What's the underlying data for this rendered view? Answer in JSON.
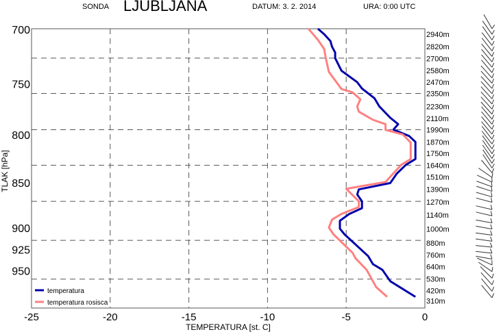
{
  "header": {
    "sonda_label": "SONDA",
    "station": "LJUBLJANA",
    "date": "DATUM:  3. 2. 2014",
    "time": "URA:  0:00 UTC"
  },
  "colors": {
    "temperature": "#0000aa",
    "dewpoint": "#ff8080",
    "grid": "#555555"
  },
  "chart_data": {
    "type": "line",
    "xlabel": "TEMPERATURA [st. C]",
    "ylabel": "TLAK [hPa]",
    "xlim": [
      -25,
      0
    ],
    "ylim": [
      700,
      1000
    ],
    "yscale": "log",
    "xticks": [
      -25,
      -20,
      -15,
      -10,
      -5,
      0
    ],
    "yticks": [
      700,
      750,
      800,
      850,
      900,
      925,
      950
    ],
    "vgrid": [
      -20,
      -15,
      -10,
      -5
    ],
    "hgrid_pressures": [
      726.5,
      759.7,
      795.4,
      832,
      870.9,
      915,
      961
    ],
    "legend": {
      "placement": "bottom-left",
      "entries": [
        "temperatura",
        "temperatura rosisca"
      ]
    },
    "series": [
      {
        "name": "temperatura",
        "points": [
          [
            700,
            -6.8
          ],
          [
            704.9,
            -6.4
          ],
          [
            711,
            -6.0
          ],
          [
            716.1,
            -5.9
          ],
          [
            721.4,
            -5.7
          ],
          [
            726.5,
            -5.7
          ],
          [
            738.2,
            -5.3
          ],
          [
            749,
            -4.3
          ],
          [
            755,
            -4.0
          ],
          [
            764.4,
            -3.2
          ],
          [
            772.2,
            -2.9
          ],
          [
            783.5,
            -2.2
          ],
          [
            789.9,
            -1.7
          ],
          [
            795.4,
            -2.0
          ],
          [
            801.8,
            -1.0
          ],
          [
            807.8,
            -0.6
          ],
          [
            825.5,
            -0.6
          ],
          [
            831.5,
            -1.2
          ],
          [
            841.2,
            -1.8
          ],
          [
            851,
            -2.2
          ],
          [
            857.9,
            -4.2
          ],
          [
            863.4,
            -4.3
          ],
          [
            870.9,
            -4.0
          ],
          [
            878.5,
            -4.0
          ],
          [
            884.9,
            -4.8
          ],
          [
            892.6,
            -5.4
          ],
          [
            901.6,
            -5.4
          ],
          [
            908.2,
            -5.1
          ],
          [
            933.5,
            -3.6
          ],
          [
            943,
            -3.3
          ],
          [
            949.8,
            -2.7
          ],
          [
            963.6,
            -2.2
          ],
          [
            982.8,
            -0.6
          ]
        ]
      },
      {
        "name": "temperatura rosisca",
        "points": [
          [
            700,
            -7.4
          ],
          [
            709.9,
            -6.8
          ],
          [
            718.2,
            -6.4
          ],
          [
            726.5,
            -6.3
          ],
          [
            739.3,
            -6.1
          ],
          [
            755.5,
            -5.3
          ],
          [
            758.7,
            -4.6
          ],
          [
            765.4,
            -4.1
          ],
          [
            772.2,
            -4.3
          ],
          [
            777.5,
            -4.2
          ],
          [
            785.5,
            -3.3
          ],
          [
            789.9,
            -2.5
          ],
          [
            795.6,
            -2.5
          ],
          [
            800.3,
            -1.4
          ],
          [
            808.5,
            -0.9
          ],
          [
            815.6,
            -0.9
          ],
          [
            825.5,
            -0.9
          ],
          [
            831.5,
            -1.5
          ],
          [
            849.8,
            -2.5
          ],
          [
            857.2,
            -5.0
          ],
          [
            870.9,
            -4.2
          ],
          [
            877.3,
            -4.2
          ],
          [
            884.9,
            -5.3
          ],
          [
            891.3,
            -5.9
          ],
          [
            900.4,
            -6.1
          ],
          [
            908.2,
            -5.8
          ],
          [
            929.5,
            -4.6
          ],
          [
            936.3,
            -4.4
          ],
          [
            949.8,
            -3.7
          ],
          [
            970.6,
            -3.1
          ],
          [
            982.8,
            -2.4
          ]
        ]
      }
    ],
    "heights": [
      {
        "label": "2940m",
        "p": 704.9
      },
      {
        "label": "2820m",
        "p": 716
      },
      {
        "label": "2700m",
        "p": 727
      },
      {
        "label": "2580m",
        "p": 738
      },
      {
        "label": "2470m",
        "p": 749
      },
      {
        "label": "2350m",
        "p": 759.7
      },
      {
        "label": "2230m",
        "p": 772.2
      },
      {
        "label": "2110m",
        "p": 784
      },
      {
        "label": "1990m",
        "p": 795.4
      },
      {
        "label": "1870m",
        "p": 808
      },
      {
        "label": "1750m",
        "p": 819.6
      },
      {
        "label": "1640m",
        "p": 832
      },
      {
        "label": "1510m",
        "p": 844.6
      },
      {
        "label": "1390m",
        "p": 857.9
      },
      {
        "label": "1270m",
        "p": 871.7
      },
      {
        "label": "1140m",
        "p": 886
      },
      {
        "label": "1000m",
        "p": 902
      },
      {
        "label": "880m",
        "p": 918
      },
      {
        "label": "760m",
        "p": 932
      },
      {
        "label": "640m",
        "p": 946
      },
      {
        "label": "530m",
        "p": 961
      },
      {
        "label": "420m",
        "p": 975
      },
      {
        "label": "310m",
        "p": 988
      }
    ],
    "wind": [
      [
        700,
        330
      ],
      [
        705,
        325
      ],
      [
        710,
        325
      ],
      [
        715,
        322
      ],
      [
        720,
        322
      ],
      [
        725,
        320
      ],
      [
        730,
        320
      ],
      [
        735,
        320
      ],
      [
        740,
        320
      ],
      [
        745,
        318
      ],
      [
        750,
        318
      ],
      [
        755,
        318
      ],
      [
        760,
        318
      ],
      [
        765,
        318
      ],
      [
        770,
        318
      ],
      [
        775,
        318
      ],
      [
        780,
        318
      ],
      [
        785,
        320
      ],
      [
        790,
        320
      ],
      [
        795,
        320
      ],
      [
        800,
        320
      ],
      [
        805,
        322
      ],
      [
        810,
        322
      ],
      [
        815,
        324
      ],
      [
        820,
        325
      ],
      [
        825,
        325
      ],
      [
        830,
        326
      ],
      [
        835,
        326
      ],
      [
        840,
        320
      ],
      [
        845,
        305
      ],
      [
        850,
        295
      ],
      [
        855,
        290
      ],
      [
        860,
        288
      ],
      [
        866,
        286
      ],
      [
        872,
        285
      ],
      [
        880,
        283
      ],
      [
        887,
        283
      ],
      [
        895,
        280
      ],
      [
        902,
        280
      ],
      [
        909,
        278
      ],
      [
        916,
        278
      ],
      [
        923,
        276
      ],
      [
        930,
        276
      ],
      [
        937,
        280
      ],
      [
        944,
        295
      ],
      [
        952,
        305
      ],
      [
        960,
        315
      ],
      [
        968,
        318
      ],
      [
        976,
        320
      ],
      [
        984,
        320
      ]
    ]
  }
}
